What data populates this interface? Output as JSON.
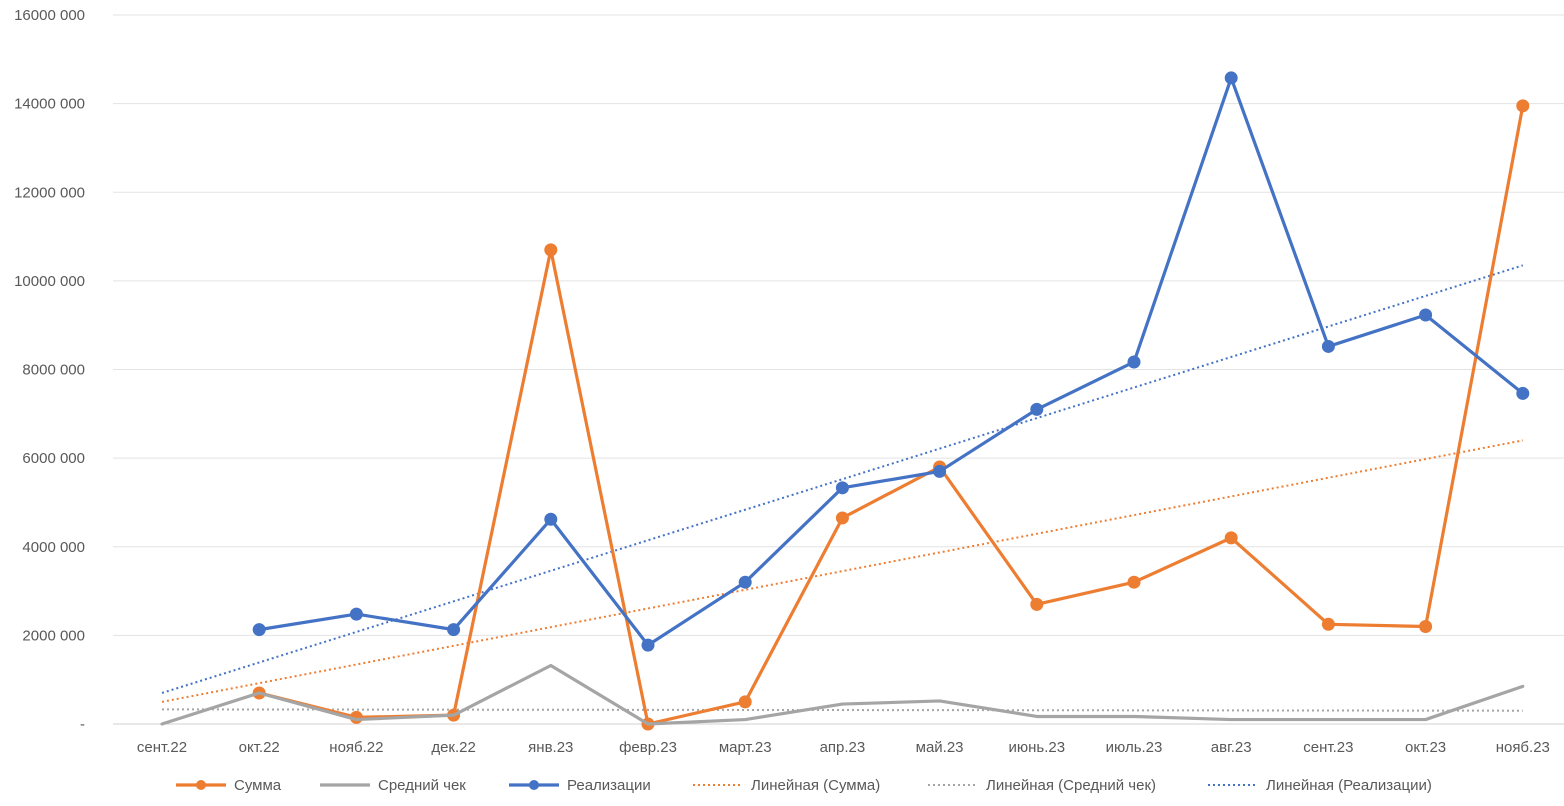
{
  "chart_data": {
    "type": "line",
    "categories": [
      "сент.22",
      "окт.22",
      "нояб.22",
      "дек.22",
      "янв.23",
      "февр.23",
      "март.23",
      "апр.23",
      "май.23",
      "июнь.23",
      "июль.23",
      "авг.23",
      "сент.23",
      "окт.23",
      "нояб.23"
    ],
    "y_ticks": [
      "-",
      "2000 000",
      "4000 000",
      "6000 000",
      "8000 000",
      "10000 000",
      "12000 000",
      "14000 000",
      "16000 000"
    ],
    "ylim": [
      0,
      16000000
    ],
    "grid": true,
    "legend_position": "bottom",
    "series": [
      {
        "name": "Сумма",
        "color": "#ED7D31",
        "markers": true,
        "values": [
          null,
          700000,
          150000,
          200000,
          10700000,
          0,
          500000,
          4650000,
          5800000,
          2700000,
          3200000,
          4200000,
          2250000,
          2200000,
          13950000
        ]
      },
      {
        "name": "Средний чек",
        "color": "#A5A5A5",
        "markers": false,
        "values": [
          0,
          700000,
          100000,
          200000,
          1320000,
          0,
          100000,
          450000,
          520000,
          170000,
          170000,
          100000,
          100000,
          100000,
          850000
        ]
      },
      {
        "name": "Реализации",
        "color": "#4472C4",
        "markers": true,
        "values": [
          null,
          2130000,
          2480000,
          2130000,
          4620000,
          1780000,
          3200000,
          5330000,
          5700000,
          7100000,
          8170000,
          14580000,
          8520000,
          9230000,
          7460000
        ]
      }
    ],
    "trendlines": [
      {
        "name": "Линейная (Сумма)",
        "color": "#ED7D31",
        "start": 500000,
        "end": 6400000
      },
      {
        "name": "Линейная (Средний чек)",
        "color": "#A5A5A5",
        "start": 330000,
        "end": 300000
      },
      {
        "name": "Линейная (Реализации)",
        "color": "#4472C4",
        "start": 700000,
        "end": 10350000
      }
    ]
  }
}
